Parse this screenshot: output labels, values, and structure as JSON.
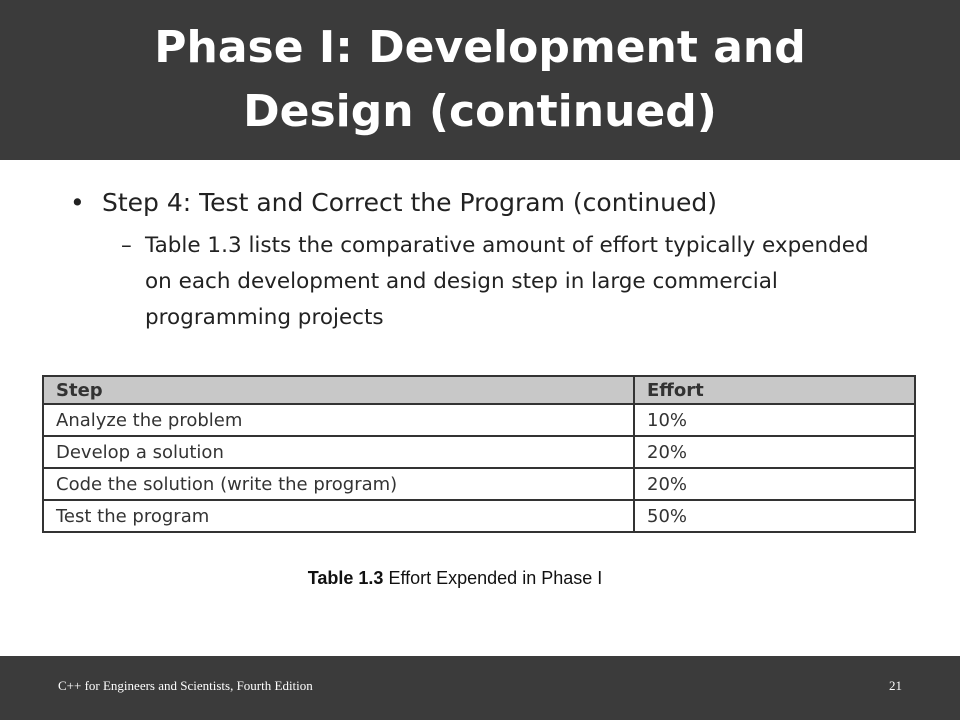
{
  "header": {
    "title": "Phase I: Development and Design (continued)"
  },
  "bullets": [
    {
      "text": "Step 4: Test and Correct the Program (continued)",
      "sub": [
        "Table 1.3 lists the comparative amount of effort typically expended on each development and design step in large commercial programming projects"
      ]
    }
  ],
  "table": {
    "columns": [
      "Step",
      "Effort"
    ],
    "rows": [
      [
        "Analyze the problem",
        "10%"
      ],
      [
        "Develop a solution",
        "20%"
      ],
      [
        "Code the solution (write the program)",
        "20%"
      ],
      [
        "Test the program",
        "50%"
      ]
    ]
  },
  "caption": {
    "label": "Table 1.3",
    "text": "Effort Expended in Phase I"
  },
  "footer": {
    "book": "C++ for Engineers and Scientists, Fourth Edition",
    "page": "21"
  }
}
